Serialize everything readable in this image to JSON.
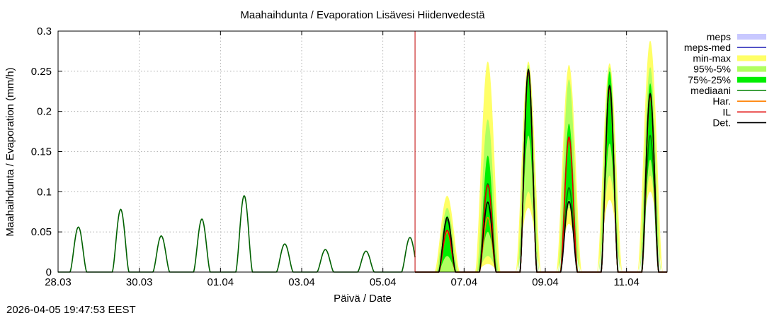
{
  "timestamp": "2026-04-05 19:47:53 EEST",
  "chart_data": {
    "type": "area",
    "title": "Maahaihdunta / Evaporation  Lisävesi Hiidenvedestä",
    "xlabel": "Päivä / Date",
    "ylabel": "Maahaihdunta / Evaporation (mm/h)",
    "xlim": [
      "2026-03-28",
      "2026-04-12"
    ],
    "ylim": [
      0,
      0.3
    ],
    "y_ticks": [
      0,
      0.05,
      0.1,
      0.15,
      0.2,
      0.25,
      0.3
    ],
    "y_tick_labels": [
      "0",
      "0.05",
      "0.1",
      "0.15",
      "0.2",
      "0.25",
      "0.3"
    ],
    "x_ticks": [
      "2026-03-28",
      "2026-03-30",
      "2026-04-01",
      "2026-04-03",
      "2026-04-05",
      "2026-04-07",
      "2026-04-09",
      "2026-04-11"
    ],
    "x_tick_labels": [
      "28.03",
      "30.03",
      "01.04",
      "03.04",
      "05.04",
      "07.04",
      "09.04",
      "11.04"
    ],
    "grid": true,
    "forecast_start": "2026-04-05T19:00",
    "legend_position": "right",
    "legend": [
      {
        "label": "meps",
        "kind": "band",
        "color": "#c8c8ff"
      },
      {
        "label": "meps-med",
        "kind": "line",
        "color": "#4040c0"
      },
      {
        "label": "min-max",
        "kind": "band",
        "color": "#ffff66"
      },
      {
        "label": "95%-5%",
        "kind": "band",
        "color": "#b0ff60"
      },
      {
        "label": "75%-25%",
        "kind": "band",
        "color": "#00ee00"
      },
      {
        "label": "mediaani",
        "kind": "line",
        "color": "#008000"
      },
      {
        "label": "Har.",
        "kind": "line",
        "color": "#ff8000"
      },
      {
        "label": "IL",
        "kind": "line",
        "color": "#e00000"
      },
      {
        "label": "Det.",
        "kind": "line",
        "color": "#000000"
      }
    ],
    "colors": {
      "meps": "#c8c8ff",
      "minmax": "#ffff66",
      "p95_5": "#b0ff60",
      "p75_25": "#00ee00",
      "median": "#008000",
      "har": "#ff8000",
      "il": "#e00000",
      "det": "#000000",
      "forecast_line": "#c00000"
    },
    "observed_daily_peaks": [
      {
        "date": "2026-03-28",
        "peak": 0.056,
        "time": "2026-03-28T12:00"
      },
      {
        "date": "2026-03-29",
        "peak": 0.078,
        "time": "2026-03-29T13:00"
      },
      {
        "date": "2026-03-30",
        "peak": 0.045,
        "time": "2026-03-30T13:00"
      },
      {
        "date": "2026-03-31",
        "peak": 0.066,
        "time": "2026-03-31T13:00"
      },
      {
        "date": "2026-04-01",
        "peak": 0.095,
        "time": "2026-04-01T14:00"
      },
      {
        "date": "2026-04-02",
        "peak": 0.035,
        "time": "2026-04-02T14:00"
      },
      {
        "date": "2026-04-03",
        "peak": 0.028,
        "time": "2026-04-03T14:00"
      },
      {
        "date": "2026-04-04",
        "peak": 0.026,
        "time": "2026-04-04T14:00"
      },
      {
        "date": "2026-04-05",
        "peak": 0.043,
        "time": "2026-04-05T16:00"
      }
    ],
    "forecast_daily_peaks": [
      {
        "date": "2026-04-06",
        "time": "2026-04-06T14:00",
        "min": 0.0,
        "max": 0.095,
        "p5": 0.0,
        "p95": 0.08,
        "p25": 0.02,
        "p75": 0.07,
        "median": 0.065,
        "har": 0.05,
        "il": 0.052,
        "det": 0.068,
        "meps_max": 0.07
      },
      {
        "date": "2026-04-07",
        "time": "2026-04-07T14:00",
        "min": 0.01,
        "max": 0.262,
        "p5": 0.02,
        "p95": 0.19,
        "p25": 0.05,
        "p75": 0.145,
        "median": 0.11,
        "har": 0.068,
        "il": 0.108,
        "det": 0.087
      },
      {
        "date": "2026-04-08",
        "time": "2026-04-08T14:00",
        "min": 0.08,
        "max": 0.262,
        "p5": 0.1,
        "p95": 0.258,
        "p25": 0.17,
        "p75": 0.25,
        "median": 0.248,
        "har": 0.25,
        "il": 0.25,
        "det": 0.252
      },
      {
        "date": "2026-04-09",
        "time": "2026-04-09T14:00",
        "min": 0.06,
        "max": 0.258,
        "p5": 0.08,
        "p95": 0.24,
        "p25": 0.09,
        "p75": 0.185,
        "median": 0.105,
        "har": 0.166,
        "il": 0.168,
        "det": 0.088
      },
      {
        "date": "2026-04-10",
        "time": "2026-04-10T14:00",
        "min": 0.09,
        "max": 0.26,
        "p5": 0.12,
        "p95": 0.255,
        "p25": 0.16,
        "p75": 0.25,
        "median": 0.23,
        "har": 0.228,
        "il": 0.23,
        "det": 0.232
      },
      {
        "date": "2026-04-11",
        "time": "2026-04-11T14:00",
        "min": 0.1,
        "max": 0.288,
        "p5": 0.12,
        "p95": 0.255,
        "p25": 0.14,
        "p75": 0.235,
        "median": 0.17,
        "har": 0.218,
        "il": 0.22,
        "det": 0.222
      }
    ]
  }
}
